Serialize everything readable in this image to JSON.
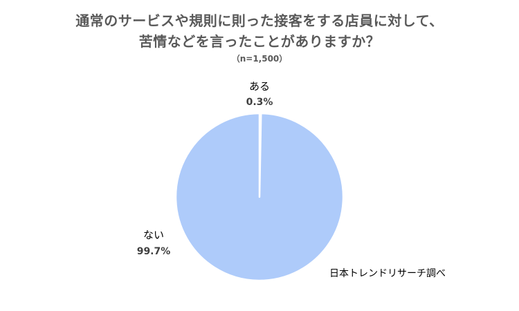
{
  "title": {
    "line1": "通常のサービスや規則に則った接客をする店員に対して、",
    "line2": "苦情などを言ったことがありますか？"
  },
  "subtitle": "（n=1,500）",
  "source": "日本トレンドリサーチ調べ",
  "colors": {
    "slice_main": "#aecbfa",
    "slice_small": "#aecbfa",
    "separator": "#ffffff",
    "title": "#595959"
  },
  "chart_data": {
    "type": "pie",
    "title": "通常のサービスや規則に則った接客をする店員に対して、苦情などを言ったことがありますか？",
    "subtitle": "（n=1,500）",
    "start_angle_deg": 0,
    "direction": "clockwise",
    "slices": [
      {
        "label": "ある",
        "value": 0.3,
        "value_label": "0.3%"
      },
      {
        "label": "ない",
        "value": 99.7,
        "value_label": "99.7%"
      }
    ],
    "legend": "none"
  }
}
